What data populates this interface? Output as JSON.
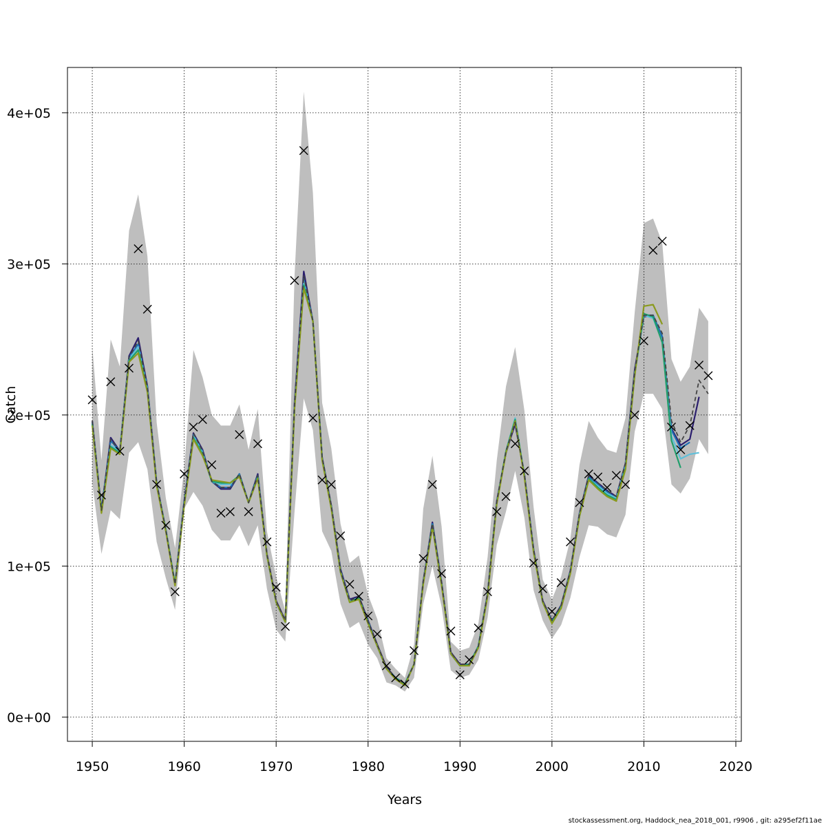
{
  "chart_data": {
    "type": "line",
    "xlabel": "Years",
    "ylabel": "Catch",
    "xlim": [
      1947.3,
      2020.6
    ],
    "ylim": [
      -16000,
      430000
    ],
    "x_ticks": [
      1950,
      1960,
      1970,
      1980,
      1990,
      2000,
      2010,
      2020
    ],
    "x_tick_labels": [
      "1950",
      "1960",
      "1970",
      "1980",
      "1990",
      "2000",
      "2010",
      "2020"
    ],
    "y_ticks": [
      0,
      100000,
      200000,
      300000,
      400000
    ],
    "y_tick_labels": [
      "0e+00",
      "1e+05",
      "2e+05",
      "3e+05",
      "4e+05"
    ],
    "grid": true,
    "years": [
      1950,
      1951,
      1952,
      1953,
      1954,
      1955,
      1956,
      1957,
      1958,
      1959,
      1960,
      1961,
      1962,
      1963,
      1964,
      1965,
      1966,
      1967,
      1968,
      1969,
      1970,
      1971,
      1972,
      1973,
      1974,
      1975,
      1976,
      1977,
      1978,
      1979,
      1980,
      1981,
      1982,
      1983,
      1984,
      1985,
      1986,
      1987,
      1988,
      1989,
      1990,
      1991,
      1992,
      1993,
      1994,
      1995,
      1996,
      1997,
      1998,
      1999,
      2000,
      2001,
      2002,
      2003,
      2004,
      2005,
      2006,
      2007,
      2008,
      2009,
      2010,
      2011,
      2012,
      2013,
      2014,
      2015,
      2016,
      2017
    ],
    "band_upper": [
      245000,
      170000,
      250000,
      232000,
      322000,
      346000,
      305000,
      195000,
      145000,
      112000,
      165000,
      243000,
      225000,
      200000,
      193000,
      193000,
      207000,
      177000,
      204000,
      123000,
      93000,
      70000,
      292000,
      414000,
      347000,
      208000,
      178000,
      128000,
      102000,
      107000,
      81000,
      65000,
      39000,
      32000,
      26000,
      48000,
      138000,
      173000,
      126000,
      50000,
      44000,
      46000,
      62000,
      106000,
      170000,
      219000,
      245000,
      203000,
      139000,
      91000,
      78000,
      93000,
      118000,
      167000,
      196000,
      185000,
      177000,
      175000,
      198000,
      268000,
      327000,
      330000,
      314000,
      237000,
      222000,
      232000,
      271000,
      262000
    ],
    "band_lower": [
      155000,
      108000,
      137000,
      131000,
      175000,
      182000,
      164000,
      116000,
      92000,
      71000,
      138000,
      149000,
      140000,
      124000,
      117000,
      117000,
      127000,
      113000,
      127000,
      85000,
      58000,
      50000,
      136000,
      211000,
      190000,
      123000,
      110000,
      75000,
      59000,
      63000,
      48000,
      39000,
      23000,
      21000,
      17000,
      26000,
      75000,
      100000,
      73000,
      31000,
      26000,
      28000,
      38000,
      66000,
      114000,
      136000,
      163000,
      132000,
      84000,
      64000,
      52000,
      61000,
      79000,
      106000,
      127000,
      126000,
      121000,
      119000,
      134000,
      189000,
      214000,
      214000,
      204000,
      154000,
      148000,
      158000,
      184000,
      174000
    ],
    "observed": [
      210000,
      147000,
      222000,
      176000,
      231000,
      310000,
      270000,
      154000,
      127000,
      83000,
      161000,
      192000,
      197000,
      167000,
      135000,
      136000,
      187000,
      136000,
      181000,
      116000,
      86000,
      60000,
      289000,
      375000,
      198000,
      157000,
      154000,
      120000,
      88000,
      80000,
      67000,
      55000,
      34000,
      26000,
      22000,
      44000,
      105000,
      154000,
      95000,
      57000,
      28000,
      38000,
      59000,
      83000,
      136000,
      146000,
      181000,
      163000,
      102000,
      85000,
      70000,
      89000,
      116000,
      142000,
      161000,
      159000,
      152000,
      160000,
      154000,
      200000,
      249000,
      309000,
      315000,
      192000,
      177000,
      193000,
      233000,
      226000
    ],
    "series": [
      {
        "color": "#2b1e6e",
        "start_year": 1950,
        "values": [
          196000,
          137000,
          185000,
          176000,
          239000,
          251000,
          219000,
          155000,
          124000,
          88000,
          143000,
          188000,
          177000,
          156000,
          151000,
          151000,
          161000,
          142000,
          161000,
          108000,
          77000,
          64000,
          208000,
          295000,
          262000,
          172000,
          140000,
          98000,
          78000,
          80000,
          64000,
          48000,
          33000,
          26000,
          22000,
          35000,
          90000,
          129000,
          89000,
          43000,
          35000,
          35000,
          47000,
          82000,
          143000,
          175000,
          194000,
          161000,
          111000,
          77000,
          64000,
          74000,
          97000,
          135000,
          160000,
          155000,
          150000,
          146000,
          168000,
          230000,
          265000,
          266000,
          251000,
          191000,
          180000,
          184000,
          212000
        ]
      },
      {
        "color": "#1f6fb3",
        "start_year": 1950,
        "values": [
          195000,
          137000,
          183000,
          176000,
          238000,
          247000,
          218000,
          154000,
          124000,
          88000,
          142000,
          187000,
          176000,
          156000,
          152000,
          152000,
          161000,
          142000,
          160000,
          107000,
          76000,
          63000,
          206000,
          290000,
          262000,
          171000,
          139000,
          97000,
          77000,
          79000,
          63000,
          47000,
          32000,
          26000,
          22000,
          35000,
          89000,
          128000,
          88000,
          42000,
          34000,
          35000,
          47000,
          81000,
          142000,
          175000,
          196000,
          160000,
          110000,
          76000,
          63000,
          73000,
          96000,
          134000,
          159000,
          154000,
          149000,
          145000,
          167000,
          228000,
          266000,
          266000,
          252000,
          190000,
          178000,
          182000
        ]
      },
      {
        "color": "#5fbfd9",
        "start_year": 1950,
        "values": [
          194000,
          136000,
          180000,
          176000,
          237000,
          245000,
          217000,
          154000,
          124000,
          88000,
          141000,
          186000,
          175000,
          156000,
          154000,
          154000,
          160000,
          142000,
          159000,
          107000,
          76000,
          63000,
          205000,
          288000,
          262000,
          171000,
          139000,
          96000,
          77000,
          79000,
          63000,
          47000,
          32000,
          26000,
          22000,
          35000,
          89000,
          127000,
          88000,
          42000,
          34000,
          35000,
          47000,
          81000,
          142000,
          176000,
          198000,
          160000,
          110000,
          76000,
          63000,
          73000,
          96000,
          134000,
          158000,
          153000,
          148000,
          145000,
          166000,
          227000,
          266000,
          264000,
          249000,
          186000,
          171000,
          174000,
          175000
        ]
      },
      {
        "color": "#1f9e6b",
        "start_year": 1950,
        "values": [
          194000,
          136000,
          179000,
          175000,
          236000,
          243000,
          216000,
          154000,
          124000,
          88000,
          141000,
          185000,
          174000,
          156000,
          155000,
          155000,
          160000,
          142000,
          159000,
          107000,
          76000,
          63000,
          205000,
          286000,
          262000,
          171000,
          139000,
          96000,
          76000,
          79000,
          63000,
          47000,
          32000,
          26000,
          22000,
          35000,
          89000,
          127000,
          88000,
          42000,
          34000,
          35000,
          47000,
          81000,
          142000,
          176000,
          197000,
          160000,
          110000,
          76000,
          63000,
          73000,
          96000,
          133000,
          158000,
          152000,
          147000,
          144000,
          165000,
          227000,
          267000,
          265000,
          248000,
          183000,
          165000
        ]
      },
      {
        "color": "#8a9a1e",
        "start_year": 1950,
        "values": [
          193000,
          135000,
          178000,
          174000,
          235000,
          241000,
          215000,
          153000,
          123000,
          87000,
          140000,
          184000,
          173000,
          157000,
          156000,
          155000,
          159000,
          142000,
          158000,
          107000,
          76000,
          63000,
          204000,
          284000,
          262000,
          170000,
          138000,
          96000,
          76000,
          78000,
          62000,
          47000,
          32000,
          25000,
          21000,
          35000,
          88000,
          126000,
          87000,
          42000,
          34000,
          34000,
          46000,
          80000,
          141000,
          175000,
          196000,
          159000,
          109000,
          76000,
          62000,
          72000,
          95000,
          133000,
          157000,
          151000,
          146000,
          143000,
          164000,
          226000,
          272000,
          273000,
          260000
        ]
      },
      {
        "color": "#444444",
        "dashed": true,
        "start_year": 1950,
        "values": [
          196000,
          137000,
          184000,
          176000,
          238000,
          249000,
          218000,
          155000,
          124000,
          88000,
          142000,
          188000,
          176000,
          156000,
          152000,
          152000,
          161000,
          142000,
          160000,
          108000,
          77000,
          64000,
          207000,
          292000,
          262000,
          172000,
          140000,
          97000,
          77000,
          80000,
          63000,
          48000,
          33000,
          26000,
          22000,
          35000,
          90000,
          128000,
          89000,
          43000,
          35000,
          35000,
          47000,
          82000,
          143000,
          176000,
          195000,
          161000,
          111000,
          77000,
          64000,
          74000,
          97000,
          135000,
          160000,
          155000,
          150000,
          146000,
          168000,
          229000,
          266000,
          266000,
          254000,
          196000,
          182000,
          193000,
          223000,
          214000
        ]
      }
    ]
  },
  "footer_text": "stockassessment.org, Haddock_nea_2018_001, r9906 , git: a295ef2f11ae"
}
